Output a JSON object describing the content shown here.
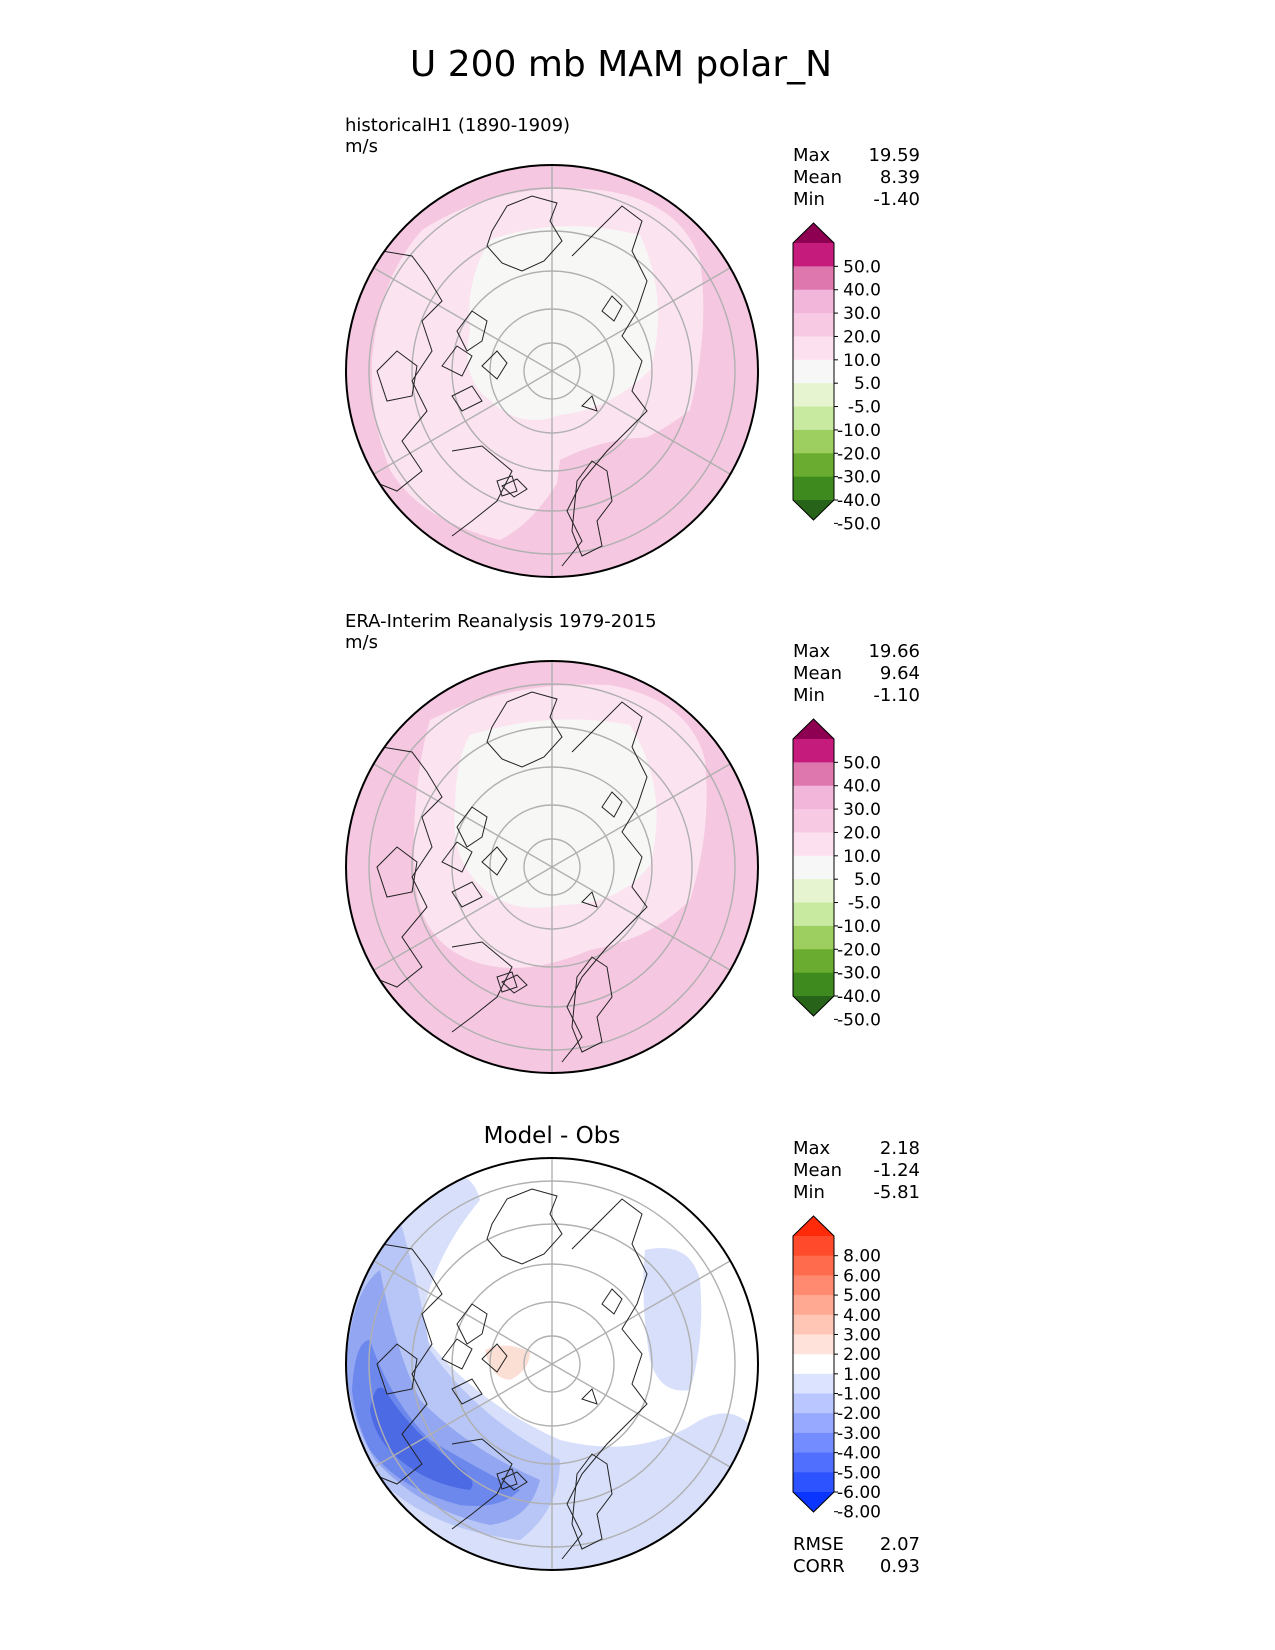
{
  "chart_data": {
    "type": "heatmap",
    "title": "U 200 mb MAM polar_N",
    "panels": [
      {
        "id": "test",
        "title": "historicalH1 (1890-1909)",
        "units": "m/s",
        "projection": "north polar stereographic",
        "stats": {
          "max_label": "Max",
          "max": "19.59",
          "mean_label": "Mean",
          "mean": "8.39",
          "min_label": "Min",
          "min": "-1.40"
        },
        "colorbar": {
          "levels": [
            "50.0",
            "40.0",
            "30.0",
            "20.0",
            "10.0",
            "5.0",
            "-5.0",
            "-10.0",
            "-20.0",
            "-30.0",
            "-40.0",
            "-50.0"
          ],
          "colors": [
            "#8e0152",
            "#c51b7d",
            "#de77ae",
            "#f1b6da",
            "#f7c9e3",
            "#fde0ef",
            "#f7f7f7",
            "#e6f5d0",
            "#c7e9a0",
            "#9dcf60",
            "#6aac30",
            "#3f8a1e",
            "#276419"
          ],
          "extend": "both"
        },
        "field_colors": [
          "#f5c7e0",
          "#fbe3f0",
          "#f7f7f6"
        ]
      },
      {
        "id": "reference",
        "title": "ERA-Interim Reanalysis 1979-2015",
        "units": "m/s",
        "projection": "north polar stereographic",
        "stats": {
          "max_label": "Max",
          "max": "19.66",
          "mean_label": "Mean",
          "mean": "9.64",
          "min_label": "Min",
          "min": "-1.10"
        },
        "colorbar": {
          "levels": [
            "50.0",
            "40.0",
            "30.0",
            "20.0",
            "10.0",
            "5.0",
            "-5.0",
            "-10.0",
            "-20.0",
            "-30.0",
            "-40.0",
            "-50.0"
          ],
          "colors": [
            "#8e0152",
            "#c51b7d",
            "#de77ae",
            "#f1b6da",
            "#f7c9e3",
            "#fde0ef",
            "#f7f7f7",
            "#e6f5d0",
            "#c7e9a0",
            "#9dcf60",
            "#6aac30",
            "#3f8a1e",
            "#276419"
          ],
          "extend": "both"
        },
        "field_colors": [
          "#f5c7e0",
          "#fbe3f0",
          "#f7f7f6"
        ]
      },
      {
        "id": "diff",
        "title": "Model - Obs",
        "units": "",
        "projection": "north polar stereographic",
        "stats": {
          "max_label": "Max",
          "max": "2.18",
          "mean_label": "Mean",
          "mean": "-1.24",
          "min_label": "Min",
          "min": "-5.81"
        },
        "metrics": {
          "rmse_label": "RMSE",
          "rmse": "2.07",
          "corr_label": "CORR",
          "corr": "0.93"
        },
        "colorbar": {
          "levels": [
            "8.00",
            "6.00",
            "5.00",
            "4.00",
            "3.00",
            "2.00",
            "1.00",
            "-1.00",
            "-2.00",
            "-3.00",
            "-4.00",
            "-5.00",
            "-6.00",
            "-8.00"
          ],
          "colors": [
            "#ff2a0a",
            "#ff4b2b",
            "#ff6c4d",
            "#ff8a6f",
            "#ffa892",
            "#ffc6b6",
            "#ffe2da",
            "#ffffff",
            "#dce3ff",
            "#b9c6ff",
            "#96a9ff",
            "#738cff",
            "#506fff",
            "#2d52ff",
            "#0a35ff"
          ],
          "extend": "both"
        },
        "field_colors": [
          "#ffffff",
          "#d7dffb",
          "#b7c6f6",
          "#92a6f1",
          "#6d88ec",
          "#4c6ae4",
          "#fbdfd5"
        ]
      }
    ]
  }
}
